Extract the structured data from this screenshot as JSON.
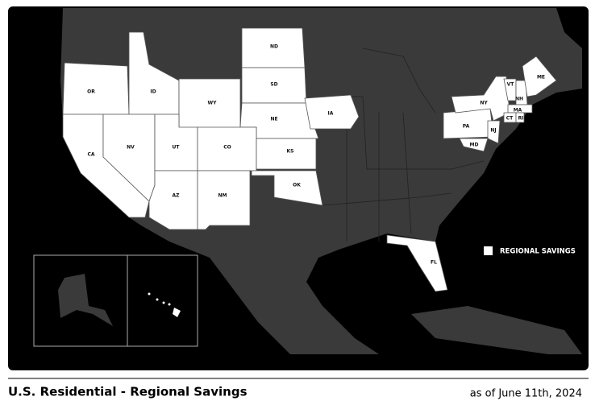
{
  "map": {
    "states": [
      "OR",
      "ID",
      "WY",
      "ND",
      "SD",
      "NE",
      "CA",
      "NV",
      "UT",
      "CO",
      "KS",
      "OK",
      "AZ",
      "NM",
      "IA",
      "FL",
      "PA",
      "NY",
      "VT",
      "NH",
      "ME",
      "MA",
      "CT",
      "RI",
      "NJ",
      "MD"
    ]
  },
  "legend": {
    "label": "REGIONAL SAVINGS"
  },
  "footer": {
    "title": "U.S. Residential - Regional Savings",
    "date": "as of June 11th, 2024"
  }
}
